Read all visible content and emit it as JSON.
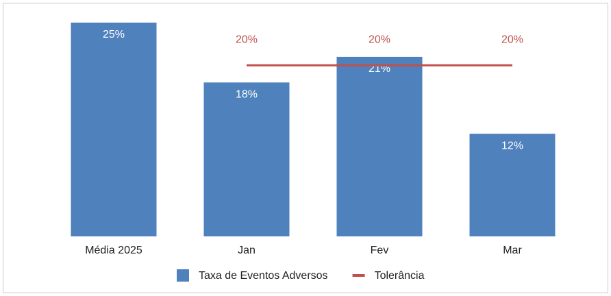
{
  "chart_data": {
    "type": "bar",
    "categories": [
      "Média 2025",
      "Jan",
      "Fev",
      "Mar"
    ],
    "series": [
      {
        "name": "Taxa de Eventos Adversos",
        "type": "bar",
        "color": "#4f81bd",
        "values": [
          25,
          18,
          21,
          12
        ],
        "value_labels": [
          "25%",
          "18%",
          "21%",
          "12%"
        ]
      },
      {
        "name": "Tolerância",
        "type": "line",
        "color": "#c0504d",
        "values": [
          null,
          20,
          20,
          20
        ],
        "value_labels": [
          null,
          "20%",
          "20%",
          "20%"
        ]
      }
    ],
    "legend": "bottom"
  }
}
